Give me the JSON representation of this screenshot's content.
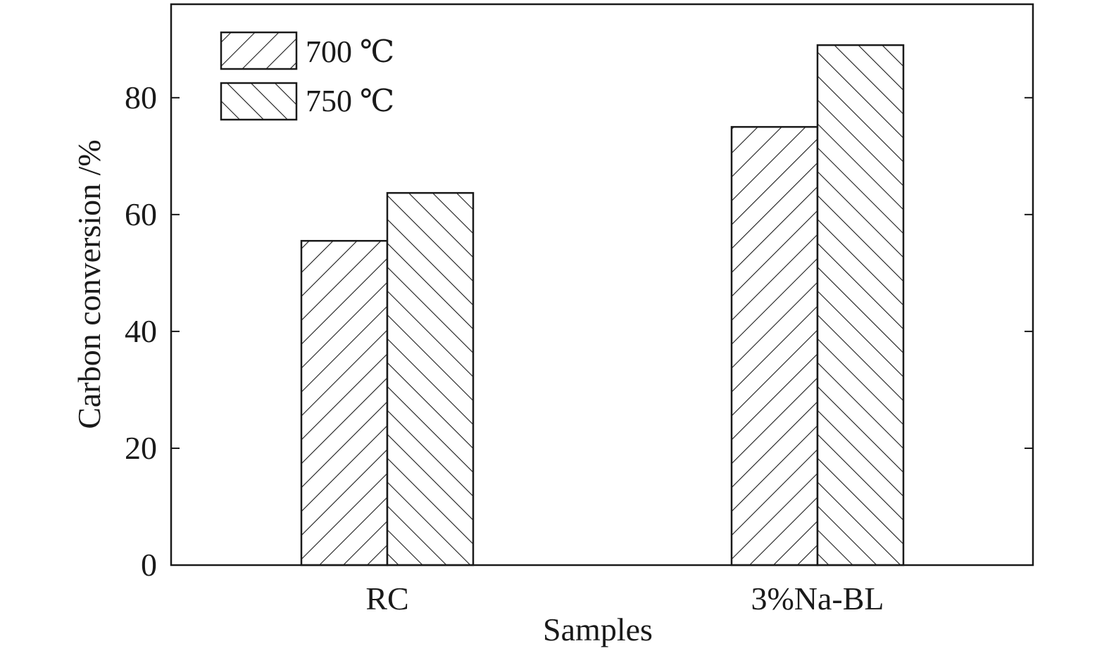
{
  "chart_data": {
    "type": "bar",
    "title": "",
    "xlabel": "Samples",
    "ylabel": "Carbon conversion /%",
    "categories": [
      "RC",
      "3%Na-BL"
    ],
    "series": [
      {
        "name": "700 ℃",
        "values": [
          55.5,
          75
        ],
        "pattern": "forward-hatch"
      },
      {
        "name": "750 ℃",
        "values": [
          63.7,
          89
        ],
        "pattern": "back-hatch"
      }
    ],
    "ylim": [
      0,
      96
    ],
    "yticks": [
      0,
      20,
      40,
      60,
      80
    ],
    "ytick_labels": [
      "0",
      "20",
      "40",
      "60",
      "80"
    ],
    "grid": false,
    "legend_position": "top-left",
    "colors": {
      "bar_stroke": "#1a1a1a",
      "bar_fill": "#ffffff",
      "axis": "#1a1a1a"
    }
  }
}
